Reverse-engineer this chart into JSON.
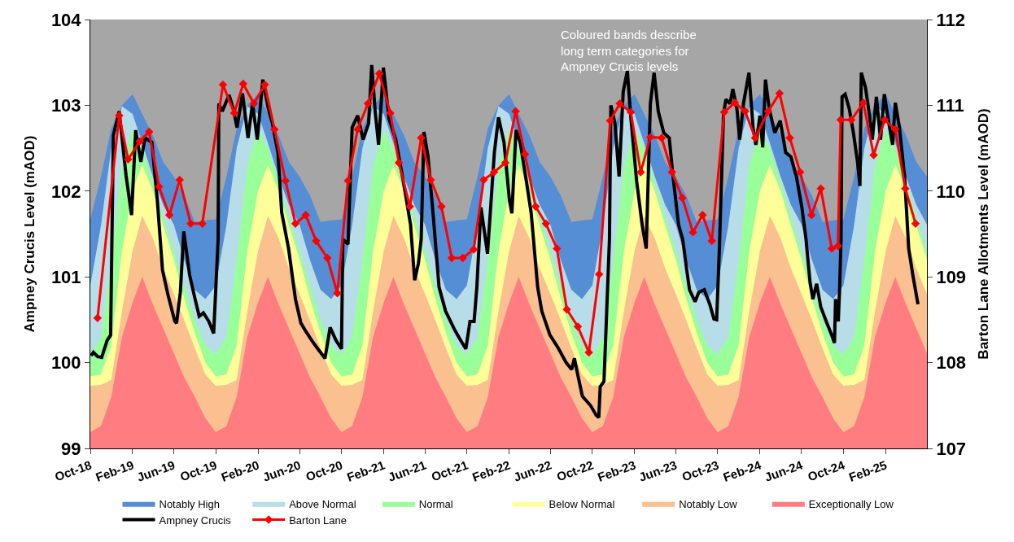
{
  "chart_data": {
    "type": "area",
    "xlim": [
      "2018-10-01",
      "2025-06-01"
    ],
    "xticks": [
      {
        "value": "2018-10-01",
        "label": "Oct-18"
      },
      {
        "value": "2019-02-01",
        "label": "Feb-19"
      },
      {
        "value": "2019-06-01",
        "label": "Jun-19"
      },
      {
        "value": "2019-10-01",
        "label": "Oct-19"
      },
      {
        "value": "2020-02-01",
        "label": "Feb-20"
      },
      {
        "value": "2020-06-01",
        "label": "Jun-20"
      },
      {
        "value": "2020-10-01",
        "label": "Oct-20"
      },
      {
        "value": "2021-02-01",
        "label": "Feb-21"
      },
      {
        "value": "2021-06-01",
        "label": "Jun-21"
      },
      {
        "value": "2021-10-01",
        "label": "Oct-21"
      },
      {
        "value": "2022-02-01",
        "label": "Feb-22"
      },
      {
        "value": "2022-06-01",
        "label": "Jun-22"
      },
      {
        "value": "2022-10-01",
        "label": "Oct-22"
      },
      {
        "value": "2023-02-01",
        "label": "Feb-23"
      },
      {
        "value": "2023-06-01",
        "label": "Jun-23"
      },
      {
        "value": "2023-10-01",
        "label": "Oct-23"
      },
      {
        "value": "2024-02-01",
        "label": "Feb-24"
      },
      {
        "value": "2024-06-01",
        "label": "Jun-24"
      },
      {
        "value": "2024-10-01",
        "label": "Oct-24"
      },
      {
        "value": "2025-02-01",
        "label": "Feb-25"
      }
    ],
    "ylim": [
      99,
      104
    ],
    "yticks": [
      99,
      100,
      101,
      102,
      103,
      104
    ],
    "y2lim": [
      107,
      112
    ],
    "y2ticks": [
      107,
      108,
      109,
      110,
      111,
      112
    ],
    "ylabel": "Ampney Crucis Level (mAOD)",
    "y2label": "Barton Lane Allotments Level (mAOD)",
    "legend": "bottom",
    "grid": false,
    "annotations": [
      "Coloured bands describe\nlong term categories for\nAmpney Crucis levels"
    ],
    "x": [
      "2018-10-01",
      "2018-11-01",
      "2018-12-01",
      "2019-01-01",
      "2019-02-01",
      "2019-03-01",
      "2019-04-01",
      "2019-05-01",
      "2019-06-01",
      "2019-07-01",
      "2019-08-01",
      "2019-09-01",
      "2019-10-01",
      "2019-11-01",
      "2019-12-01",
      "2020-01-01",
      "2020-02-01",
      "2020-03-01",
      "2020-04-01",
      "2020-05-01",
      "2020-06-01",
      "2020-07-01",
      "2020-08-01",
      "2020-09-01",
      "2020-10-01",
      "2020-11-01",
      "2020-12-01",
      "2021-01-01",
      "2021-02-01",
      "2021-03-01",
      "2021-04-01",
      "2021-05-01",
      "2021-06-01",
      "2021-07-01",
      "2021-08-01",
      "2021-09-01",
      "2021-10-01",
      "2021-11-01",
      "2021-12-01",
      "2022-01-01",
      "2022-02-01",
      "2022-03-01",
      "2022-04-01",
      "2022-05-01",
      "2022-06-01",
      "2022-07-01",
      "2022-08-01",
      "2022-09-01",
      "2022-10-01",
      "2022-11-01",
      "2022-12-01",
      "2023-01-01",
      "2023-02-01",
      "2023-03-01",
      "2023-04-01",
      "2023-05-01",
      "2023-06-01",
      "2023-07-01",
      "2023-08-01",
      "2023-09-01",
      "2023-10-01",
      "2023-11-01",
      "2023-12-01",
      "2024-01-01",
      "2024-02-01",
      "2024-03-01",
      "2024-04-01",
      "2024-05-01",
      "2024-06-01",
      "2024-07-01",
      "2024-08-01",
      "2024-09-01",
      "2024-10-01",
      "2024-11-01",
      "2024-12-01",
      "2025-01-01",
      "2025-02-01",
      "2025-03-01",
      "2025-04-01",
      "2025-05-01",
      "2025-06-01"
    ],
    "series": [
      {
        "name": "Notably High",
        "color": "#558ed5",
        "values": [
          101.67,
          102.17,
          102.73,
          103.0,
          103.13,
          102.9,
          102.65,
          102.34,
          102.17,
          101.95,
          101.64,
          101.66,
          101.67,
          102.17,
          102.73,
          103.0,
          103.13,
          102.9,
          102.65,
          102.34,
          102.17,
          101.95,
          101.64,
          101.66,
          101.67,
          102.17,
          102.73,
          103.0,
          103.13,
          102.9,
          102.65,
          102.34,
          102.17,
          101.95,
          101.64,
          101.66,
          101.67,
          102.17,
          102.73,
          103.0,
          103.13,
          102.9,
          102.65,
          102.34,
          102.17,
          101.95,
          101.64,
          101.66,
          101.67,
          102.17,
          102.73,
          103.0,
          103.13,
          102.9,
          102.65,
          102.34,
          102.17,
          101.95,
          101.64,
          101.66,
          101.67,
          102.17,
          102.73,
          103.0,
          103.13,
          102.9,
          102.65,
          102.34,
          102.17,
          101.95,
          101.64,
          101.66,
          101.67,
          102.17,
          102.73,
          103.0,
          103.13,
          102.9,
          102.65,
          102.34,
          102.17
        ]
      },
      {
        "name": "Above Normal",
        "color": "#b7dde8",
        "values": [
          100.9,
          101.6,
          102.5,
          102.99,
          102.9,
          102.56,
          102.17,
          101.84,
          101.61,
          101.2,
          100.85,
          100.74,
          100.9,
          101.6,
          102.5,
          102.99,
          102.9,
          102.56,
          102.17,
          101.84,
          101.61,
          101.2,
          100.85,
          100.74,
          100.9,
          101.6,
          102.5,
          102.99,
          102.9,
          102.56,
          102.17,
          101.84,
          101.61,
          101.2,
          100.85,
          100.74,
          100.9,
          101.6,
          102.5,
          102.99,
          102.9,
          102.56,
          102.17,
          101.84,
          101.61,
          101.2,
          100.85,
          100.74,
          100.9,
          101.6,
          102.5,
          102.99,
          102.9,
          102.56,
          102.17,
          101.84,
          101.61,
          101.2,
          100.85,
          100.74,
          100.9,
          101.6,
          102.5,
          102.99,
          102.9,
          102.56,
          102.17,
          101.84,
          101.61,
          101.2,
          100.85,
          100.74,
          100.9,
          101.6,
          102.5,
          102.99,
          102.9,
          102.56,
          102.17,
          101.84,
          101.61
        ]
      },
      {
        "name": "Normal",
        "color": "#99ff99",
        "values": [
          100.09,
          100.3,
          101.2,
          102.3,
          102.72,
          102.5,
          102.1,
          101.7,
          101.3,
          100.9,
          100.5,
          100.2,
          100.09,
          100.3,
          101.2,
          102.3,
          102.72,
          102.5,
          102.1,
          101.7,
          101.3,
          100.9,
          100.5,
          100.2,
          100.09,
          100.3,
          101.2,
          102.3,
          102.72,
          102.5,
          102.1,
          101.7,
          101.3,
          100.9,
          100.5,
          100.2,
          100.09,
          100.3,
          101.2,
          102.3,
          102.72,
          102.5,
          102.1,
          101.7,
          101.3,
          100.9,
          100.5,
          100.2,
          100.09,
          100.3,
          101.2,
          102.3,
          102.72,
          102.5,
          102.1,
          101.7,
          101.3,
          100.9,
          100.5,
          100.2,
          100.09,
          100.3,
          101.2,
          102.3,
          102.72,
          102.5,
          102.1,
          101.7,
          101.3,
          100.9,
          100.5,
          100.2,
          100.09,
          100.3,
          101.2,
          102.3,
          102.72,
          102.5,
          102.1,
          101.7,
          101.3
        ]
      },
      {
        "name": "Below Normal",
        "color": "#ffff99",
        "values": [
          99.84,
          99.86,
          100.2,
          101.3,
          102.0,
          102.31,
          102.0,
          101.6,
          101.2,
          100.75,
          100.35,
          100.0,
          99.84,
          99.86,
          100.2,
          101.3,
          102.0,
          102.31,
          102.0,
          101.6,
          101.2,
          100.75,
          100.35,
          100.0,
          99.84,
          99.86,
          100.2,
          101.3,
          102.0,
          102.31,
          102.0,
          101.6,
          101.2,
          100.75,
          100.35,
          100.0,
          99.84,
          99.86,
          100.2,
          101.3,
          102.0,
          102.31,
          102.0,
          101.6,
          101.2,
          100.75,
          100.35,
          100.0,
          99.84,
          99.86,
          100.2,
          101.3,
          102.0,
          102.31,
          102.0,
          101.6,
          101.2,
          100.75,
          100.35,
          100.0,
          99.84,
          99.86,
          100.2,
          101.3,
          102.0,
          102.31,
          102.0,
          101.6,
          101.2,
          100.75,
          100.35,
          100.0,
          99.84,
          99.86,
          100.2,
          101.3,
          102.0,
          102.31,
          102.0,
          101.6,
          101.2
        ]
      },
      {
        "name": "Notably Low",
        "color": "#fac090",
        "values": [
          99.73,
          99.74,
          99.8,
          100.6,
          101.3,
          101.71,
          101.45,
          101.1,
          100.8,
          100.5,
          100.17,
          99.86,
          99.73,
          99.74,
          99.8,
          100.6,
          101.3,
          101.71,
          101.45,
          101.1,
          100.8,
          100.5,
          100.17,
          99.86,
          99.73,
          99.74,
          99.8,
          100.6,
          101.3,
          101.71,
          101.45,
          101.1,
          100.8,
          100.5,
          100.17,
          99.86,
          99.73,
          99.74,
          99.8,
          100.6,
          101.3,
          101.71,
          101.45,
          101.1,
          100.8,
          100.5,
          100.17,
          99.86,
          99.73,
          99.74,
          99.8,
          100.6,
          101.3,
          101.71,
          101.45,
          101.1,
          100.8,
          100.5,
          100.17,
          99.86,
          99.73,
          99.74,
          99.8,
          100.6,
          101.3,
          101.71,
          101.45,
          101.1,
          100.8,
          100.5,
          100.17,
          99.86,
          99.73,
          99.74,
          99.8,
          100.6,
          101.3,
          101.71,
          101.45,
          101.1,
          100.8
        ]
      },
      {
        "name": "Exceptionally Low",
        "color": "#ff7c80",
        "values": [
          99.19,
          99.26,
          99.6,
          100.3,
          100.7,
          101.0,
          100.68,
          100.4,
          100.11,
          99.83,
          99.6,
          99.35,
          99.19,
          99.26,
          99.6,
          100.3,
          100.7,
          101.0,
          100.68,
          100.4,
          100.11,
          99.83,
          99.6,
          99.35,
          99.19,
          99.26,
          99.6,
          100.3,
          100.7,
          101.0,
          100.68,
          100.4,
          100.11,
          99.83,
          99.6,
          99.35,
          99.19,
          99.26,
          99.6,
          100.3,
          100.7,
          101.0,
          100.68,
          100.4,
          100.11,
          99.83,
          99.6,
          99.35,
          99.19,
          99.26,
          99.6,
          100.3,
          100.7,
          101.0,
          100.68,
          100.4,
          100.11,
          99.83,
          99.6,
          99.35,
          99.19,
          99.26,
          99.6,
          100.3,
          100.7,
          101.0,
          100.68,
          100.4,
          100.11,
          99.83,
          99.6,
          99.35,
          99.19,
          99.26,
          99.6,
          100.3,
          100.7,
          101.0,
          100.68,
          100.4,
          100.11
        ]
      },
      {
        "name": "Ampney Crucis",
        "type": "line",
        "color": "#000000",
        "marker": "none",
        "line_style": "solid",
        "x": [
          "2018-10-03",
          "2018-10-10",
          "2018-10-22",
          "2018-11-03",
          "2018-11-19",
          "2018-11-29",
          "2018-12-07",
          "2018-12-24",
          "2019-01-13",
          "2019-01-29",
          "2019-02-10",
          "2019-02-25",
          "2019-03-09",
          "2019-03-29",
          "2019-04-14",
          "2019-04-29",
          "2019-05-15",
          "2019-06-04",
          "2019-06-09",
          "2019-06-20",
          "2019-06-30",
          "2019-07-17",
          "2019-08-02",
          "2019-08-14",
          "2019-08-26",
          "2019-09-11",
          "2019-09-25",
          "2019-10-08",
          "2019-10-10",
          "2019-10-20",
          "2019-11-09",
          "2019-11-21",
          "2019-12-02",
          "2019-12-18",
          "2020-01-03",
          "2020-01-16",
          "2020-01-30",
          "2020-02-15",
          "2020-03-02",
          "2020-03-14",
          "2020-03-30",
          "2020-04-10",
          "2020-04-30",
          "2020-05-20",
          "2020-06-05",
          "2020-06-20",
          "2020-07-06",
          "2020-07-26",
          "2020-08-14",
          "2020-08-29",
          "2020-09-15",
          "2020-10-01",
          "2020-10-05",
          "2020-10-20",
          "2020-11-01",
          "2020-11-17",
          "2020-12-03",
          "2020-12-19",
          "2020-12-28",
          "2021-01-07",
          "2021-01-17",
          "2021-01-31",
          "2021-02-16",
          "2021-03-08",
          "2021-03-31",
          "2021-04-20",
          "2021-05-02",
          "2021-05-13",
          "2021-05-21",
          "2021-05-29",
          "2021-06-10",
          "2021-06-26",
          "2021-07-12",
          "2021-07-31",
          "2021-08-28",
          "2021-09-13",
          "2021-09-28",
          "2021-10-10",
          "2021-10-22",
          "2021-10-30",
          "2021-11-11",
          "2021-11-30",
          "2021-12-20",
          "2022-01-01",
          "2022-01-17",
          "2022-02-02",
          "2022-02-09",
          "2022-02-21",
          "2022-03-05",
          "2022-03-21",
          "2022-04-06",
          "2022-04-25",
          "2022-05-07",
          "2022-05-31",
          "2022-06-24",
          "2022-07-17",
          "2022-08-02",
          "2022-08-10",
          "2022-08-18",
          "2022-09-02",
          "2022-09-26",
          "2022-10-12",
          "2022-10-20",
          "2022-10-24",
          "2022-11-04",
          "2022-11-12",
          "2022-11-20",
          "2022-11-24",
          "2022-12-06",
          "2022-12-18",
          "2022-12-30",
          "2023-01-11",
          "2023-01-22",
          "2023-02-07",
          "2023-02-23",
          "2023-03-07",
          "2023-03-19",
          "2023-03-30",
          "2023-04-11",
          "2023-04-27",
          "2023-05-13",
          "2023-05-24",
          "2023-06-09",
          "2023-06-21",
          "2023-07-03",
          "2023-07-11",
          "2023-07-27",
          "2023-08-07",
          "2023-08-23",
          "2023-09-08",
          "2023-09-20",
          "2023-09-28",
          "2023-10-06",
          "2023-10-18",
          "2023-10-25",
          "2023-11-06",
          "2023-11-14",
          "2023-11-26",
          "2023-12-04",
          "2023-12-15",
          "2023-12-31",
          "2024-01-12",
          "2024-01-20",
          "2024-02-01",
          "2024-02-09",
          "2024-02-17",
          "2024-02-28",
          "2024-03-15",
          "2024-03-31",
          "2024-04-16",
          "2024-05-01",
          "2024-05-17",
          "2024-06-02",
          "2024-06-14",
          "2024-06-26",
          "2024-07-04",
          "2024-07-15",
          "2024-07-27",
          "2024-08-12",
          "2024-08-28",
          "2024-09-05",
          "2024-09-08",
          "2024-09-16",
          "2024-09-20",
          "2024-09-24",
          "2024-09-27",
          "2024-10-06",
          "2024-10-18",
          "2024-10-30",
          "2024-11-11",
          "2024-11-18",
          "2024-11-22",
          "2024-12-04",
          "2024-12-16",
          "2024-12-24",
          "2025-01-05",
          "2025-01-17",
          "2025-01-28",
          "2025-02-09",
          "2025-02-21",
          "2025-03-01",
          "2025-03-13",
          "2025-03-28",
          "2025-04-09",
          "2025-04-21",
          "2025-05-06"
        ],
        "values": [
          100.08,
          100.12,
          100.07,
          100.06,
          100.26,
          100.32,
          102.65,
          102.93,
          102.18,
          101.72,
          102.71,
          102.34,
          102.62,
          102.57,
          101.89,
          101.08,
          100.79,
          100.48,
          100.46,
          100.82,
          101.53,
          101.02,
          100.74,
          100.54,
          100.58,
          100.48,
          100.34,
          101.44,
          103.02,
          102.93,
          103.12,
          102.96,
          102.74,
          103.14,
          102.62,
          103.02,
          102.6,
          103.3,
          102.96,
          102.79,
          102.45,
          101.75,
          101.33,
          100.74,
          100.46,
          100.36,
          100.26,
          100.15,
          100.05,
          100.41,
          100.26,
          100.16,
          101.44,
          101.38,
          102.74,
          102.88,
          102.6,
          102.79,
          103.47,
          102.93,
          102.54,
          103.44,
          102.85,
          102.6,
          102.09,
          101.61,
          100.96,
          101.16,
          101.44,
          102.69,
          102.4,
          101.67,
          100.88,
          100.6,
          100.37,
          100.26,
          100.16,
          100.48,
          100.48,
          100.88,
          101.81,
          101.27,
          102.45,
          102.86,
          102.57,
          101.89,
          101.74,
          102.71,
          102.57,
          102.17,
          101.75,
          100.88,
          100.6,
          100.32,
          100.17,
          100.0,
          99.92,
          100.05,
          99.89,
          99.61,
          99.5,
          99.39,
          99.36,
          99.72,
          99.78,
          100.6,
          101.44,
          103.0,
          102.79,
          102.17,
          103.16,
          103.4,
          102.82,
          102.12,
          101.61,
          101.33,
          103.02,
          103.38,
          102.93,
          102.68,
          102.62,
          102.17,
          101.61,
          101.44,
          101.08,
          100.85,
          100.71,
          100.82,
          100.85,
          100.68,
          100.51,
          100.5,
          101.34,
          102.9,
          103.07,
          103.02,
          103.19,
          102.96,
          102.6,
          103.02,
          103.38,
          102.74,
          102.54,
          102.88,
          102.51,
          103.3,
          102.96,
          102.68,
          102.82,
          102.45,
          102.4,
          102.17,
          101.81,
          101.44,
          100.93,
          100.74,
          100.92,
          100.65,
          100.48,
          100.32,
          100.23,
          100.74,
          100.48,
          100.88,
          101.44,
          103.1,
          103.13,
          102.96,
          102.68,
          102.34,
          102.06,
          103.38,
          103.21,
          102.88,
          102.6,
          103.1,
          102.6,
          103.13,
          102.82,
          102.54,
          103.03,
          102.74,
          102.17,
          101.33,
          101.02,
          100.68
        ]
      },
      {
        "name": "Barton Lane",
        "type": "line",
        "axis": "y2",
        "color": "#ff0000",
        "marker": "diamond",
        "line_style": "solid",
        "x": [
          "2018-10-22",
          "2018-12-24",
          "2019-01-19",
          "2019-02-22",
          "2019-03-21",
          "2019-04-19",
          "2019-05-19",
          "2019-06-18",
          "2019-07-20",
          "2019-08-23",
          "2019-10-22",
          "2019-11-24",
          "2019-12-20",
          "2020-01-20",
          "2020-02-21",
          "2020-03-20",
          "2020-04-21",
          "2020-05-20",
          "2020-06-19",
          "2020-07-19",
          "2020-08-21",
          "2020-09-19",
          "2020-10-20",
          "2020-11-17",
          "2020-12-17",
          "2021-01-19",
          "2021-02-20",
          "2021-03-17",
          "2021-04-18",
          "2021-05-21",
          "2021-06-18",
          "2021-07-19",
          "2021-08-18",
          "2021-09-19",
          "2021-10-21",
          "2021-11-19",
          "2021-12-19",
          "2022-01-21",
          "2022-02-20",
          "2022-03-19",
          "2022-04-19",
          "2022-05-19",
          "2022-06-20",
          "2022-07-19",
          "2022-08-20",
          "2022-09-21",
          "2022-10-21",
          "2022-11-22",
          "2022-12-20",
          "2023-01-21",
          "2023-02-19",
          "2023-03-19",
          "2023-04-21",
          "2023-05-21",
          "2023-06-20",
          "2023-07-21",
          "2023-08-18",
          "2023-09-14",
          "2023-10-20",
          "2023-11-20",
          "2023-12-20",
          "2024-01-18",
          "2024-02-25",
          "2024-03-29",
          "2024-04-28",
          "2024-05-28",
          "2024-06-30",
          "2024-07-27",
          "2024-08-28",
          "2024-09-15",
          "2024-09-23",
          "2024-10-24",
          "2024-11-28",
          "2024-12-28",
          "2025-01-29",
          "2025-03-01",
          "2025-03-30",
          "2025-04-29"
        ],
        "values": [
          108.52,
          110.88,
          110.37,
          110.58,
          110.69,
          110.05,
          109.72,
          110.13,
          109.62,
          109.62,
          111.24,
          110.91,
          111.25,
          111.02,
          111.24,
          110.72,
          110.12,
          109.62,
          109.72,
          109.42,
          109.22,
          108.81,
          110.12,
          110.72,
          111.02,
          111.37,
          110.91,
          110.33,
          109.82,
          110.62,
          110.13,
          109.82,
          109.22,
          109.22,
          109.32,
          110.13,
          110.22,
          110.33,
          110.93,
          110.43,
          109.82,
          109.62,
          109.33,
          108.62,
          108.42,
          108.12,
          109.03,
          110.82,
          111.02,
          110.92,
          110.22,
          110.63,
          110.62,
          110.22,
          109.92,
          109.52,
          109.72,
          109.42,
          110.92,
          111.03,
          110.93,
          110.62,
          110.93,
          111.14,
          110.62,
          110.22,
          109.72,
          110.03,
          109.33,
          109.36,
          110.83,
          110.83,
          111.03,
          110.42,
          110.83,
          110.72,
          110.03,
          109.62
        ]
      }
    ]
  }
}
